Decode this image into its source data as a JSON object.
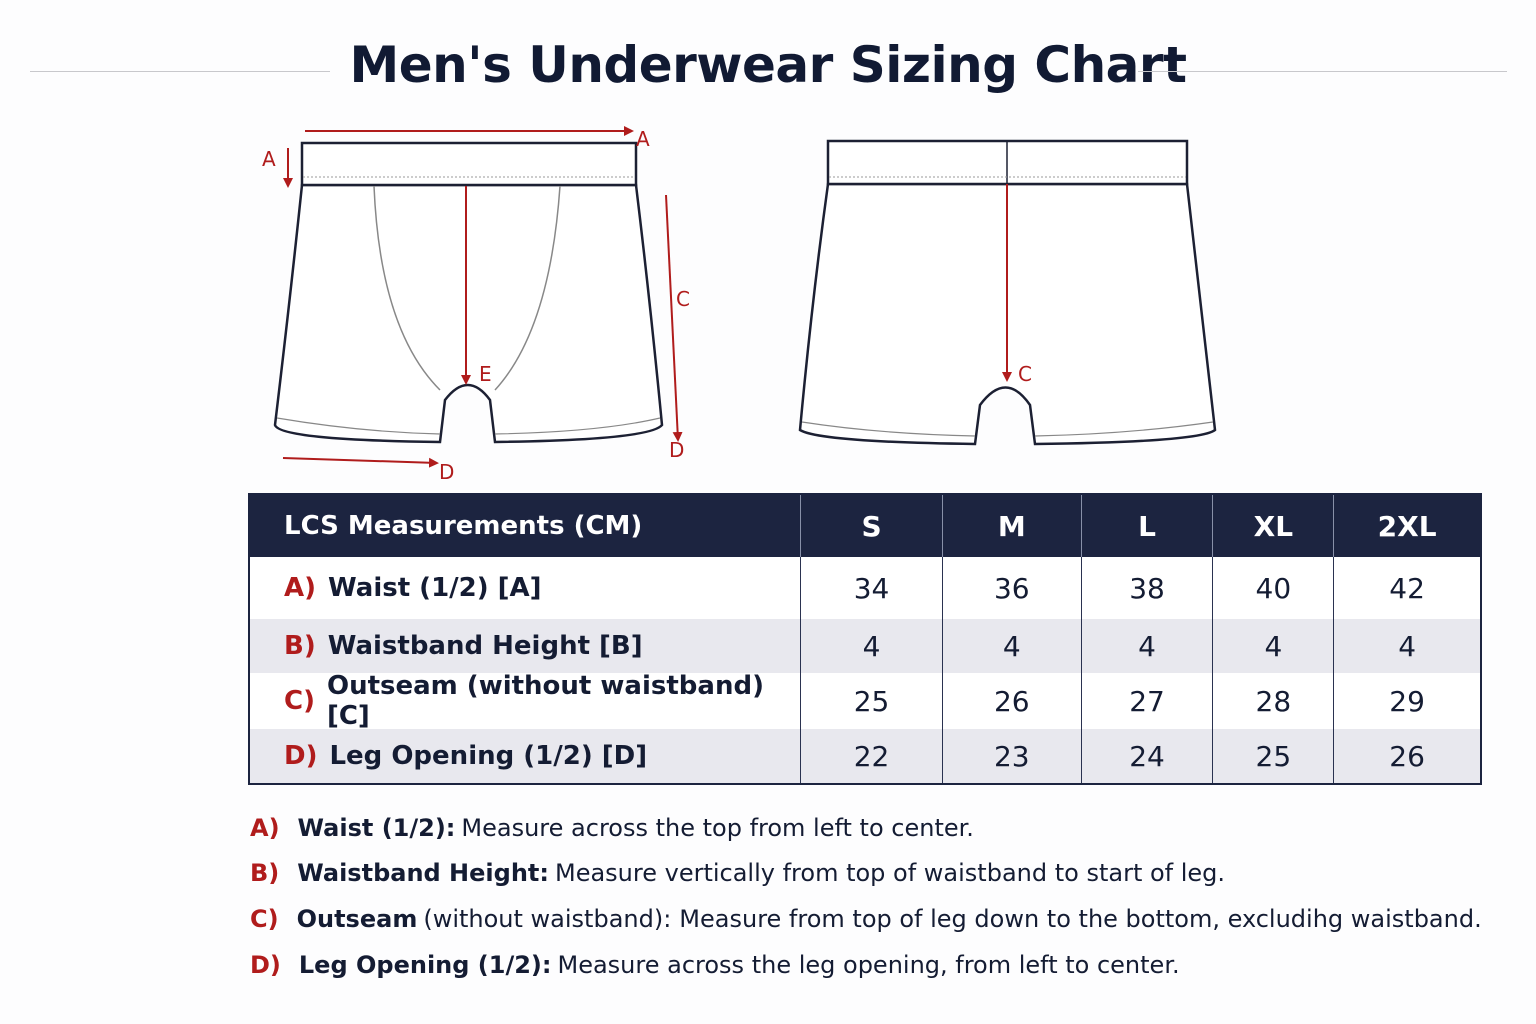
{
  "header": {
    "title": "Men's Underwear Sizing Chart"
  },
  "diagram": {
    "front": {
      "labels": [
        "A",
        "A",
        "C",
        "E",
        "D",
        "D"
      ]
    },
    "back": {
      "labels": [
        "C"
      ]
    }
  },
  "table": {
    "header": [
      "LCS Measurements (CM)",
      "S",
      "M",
      "L",
      "XL",
      "2XL"
    ],
    "rows": [
      {
        "letter": "A)",
        "label": "Waist (1/2) [A]",
        "values": [
          34,
          36,
          38,
          40,
          42
        ]
      },
      {
        "letter": "B)",
        "label": "Waistband Height [B]",
        "values": [
          4,
          4,
          4,
          4,
          4
        ]
      },
      {
        "letter": "C)",
        "label": "Outseam (without waistband) [C]",
        "values": [
          25,
          26,
          27,
          28,
          29
        ]
      },
      {
        "letter": "D)",
        "label": "Leg Opening (1/2) [D]",
        "values": [
          22,
          23,
          24,
          25,
          26
        ]
      }
    ]
  },
  "notes": [
    {
      "letter": "A)",
      "term": "Waist (1/2):",
      "text": "Measure across the top from left to center."
    },
    {
      "letter": "B)",
      "term": "Waistband Height:",
      "text": "Measure vertically from top of waistband to start of leg."
    },
    {
      "letter": "C)",
      "term": "Outseam",
      "qualifier": "(without waistband):",
      "text": "Measure from top of leg down to the bottom, excludihg waistband."
    },
    {
      "letter": "D)",
      "term": "Leg Opening (1/2):",
      "text": "Measure across the leg opening, from left to center."
    }
  ]
}
